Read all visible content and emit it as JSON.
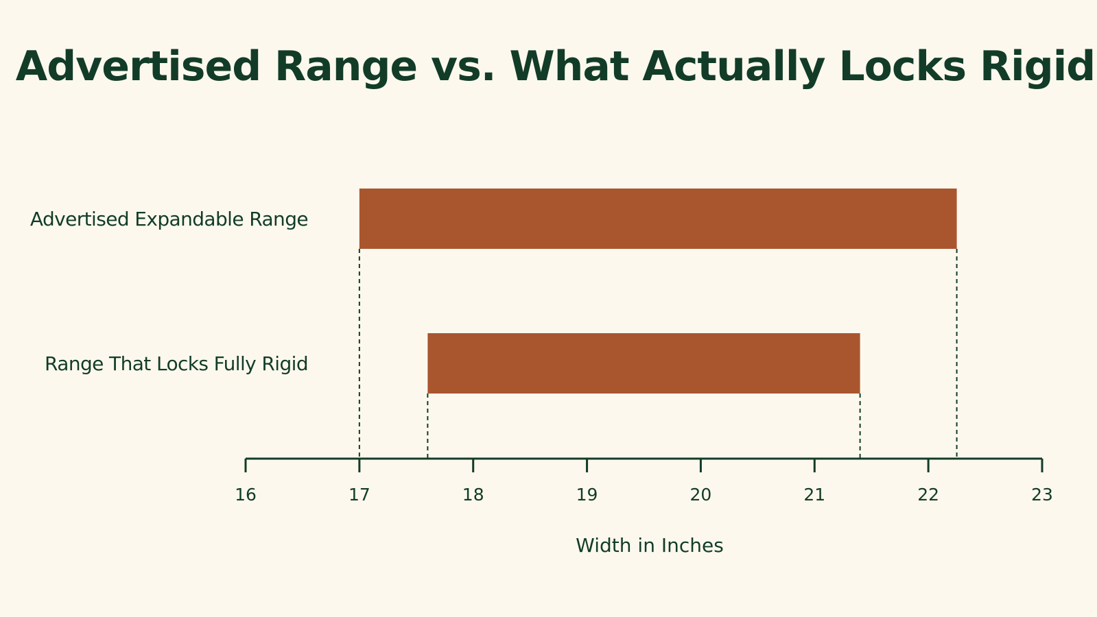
{
  "colors": {
    "background": "#fcf8ee",
    "bar": "#a9562f",
    "text": "#123c27",
    "axis": "#123c27"
  },
  "chart_data": {
    "type": "bar",
    "orientation": "horizontal",
    "title": "Advertised Range vs. What Actually Locks Rigid",
    "xlabel": "Width in Inches",
    "ylabel": "",
    "xlim": [
      16,
      23
    ],
    "xticks": [
      16,
      17,
      18,
      19,
      20,
      21,
      22,
      23
    ],
    "grid": false,
    "categories": [
      "Advertised Expandable Range",
      "Range That Locks Fully Rigid"
    ],
    "ranges": [
      {
        "category": "Advertised Expandable Range",
        "start": 17.0,
        "end": 22.25
      },
      {
        "category": "Range That Locks Fully Rigid",
        "start": 17.6,
        "end": 21.4
      }
    ],
    "guide_lines": "dashed vertical lines from each bar end down to the axis"
  }
}
